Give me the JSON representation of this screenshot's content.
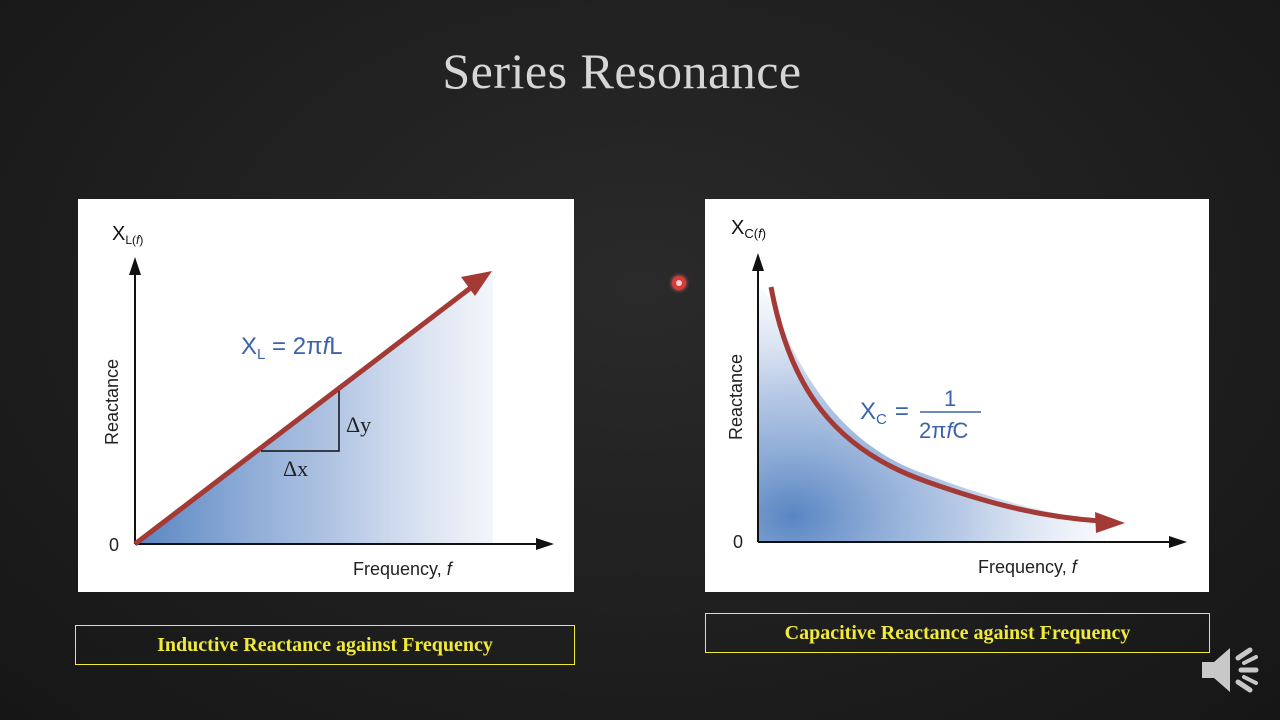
{
  "slide": {
    "title": "Series Resonance"
  },
  "left_diagram": {
    "y_symbol": "X",
    "y_subscript": "L(",
    "y_sub_f": "f",
    "y_sub_close": ")",
    "y_axis_label": "Reactance",
    "origin_label": "0",
    "x_axis_label": "Frequency, ",
    "x_axis_var": "f",
    "formula_x": "X",
    "formula_sub": "L",
    "formula_rhs": " = 2π",
    "formula_f": "f",
    "formula_end": "L",
    "delta_y": "Δy",
    "delta_x": "Δx",
    "line_color": "#a33a35",
    "fill_color": "#4f7fbf"
  },
  "right_diagram": {
    "y_symbol": "X",
    "y_subscript": "C(",
    "y_sub_f": "f",
    "y_sub_close": ")",
    "y_axis_label": "Reactance",
    "origin_label": "0",
    "x_axis_label": "Frequency, ",
    "x_axis_var": "f",
    "formula_x": "X",
    "formula_sub": "C",
    "formula_eq": "=",
    "formula_num": "1",
    "formula_den_a": "2π",
    "formula_den_f": "f",
    "formula_den_c": "C",
    "curve_color": "#a33a35",
    "fill_color": "#4f7fbf"
  },
  "captions": {
    "left": "Inductive Reactance against Frequency",
    "right": "Capacitive Reactance against Frequency"
  },
  "icons": {
    "pointer": "laser-pointer-icon",
    "speaker": "speaker-icon"
  }
}
